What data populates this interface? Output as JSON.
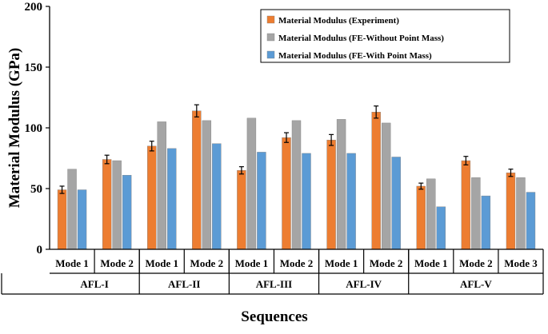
{
  "chart_data": {
    "type": "bar",
    "xlabel": "Sequences",
    "ylabel": "Material Modulus (GPa)",
    "ylim": [
      0,
      200
    ],
    "yticks": [
      0,
      50,
      100,
      150,
      200
    ],
    "grid": false,
    "legend_position": "top-right",
    "groups": [
      {
        "label": "AFL-I",
        "modes": [
          "Mode 1",
          "Mode 2"
        ]
      },
      {
        "label": "AFL-II",
        "modes": [
          "Mode 1",
          "Mode 2"
        ]
      },
      {
        "label": "AFL-III",
        "modes": [
          "Mode 1",
          "Mode 2"
        ]
      },
      {
        "label": "AFL-IV",
        "modes": [
          "Mode 1",
          "Mode 2"
        ]
      },
      {
        "label": "AFL-V",
        "modes": [
          "Mode 1",
          "Mode 2",
          "Mode 3"
        ]
      }
    ],
    "series": [
      {
        "name": "Material Modulus (Experiment)",
        "color": "#ED7D31",
        "values": [
          49,
          74,
          85,
          114,
          65,
          92,
          90,
          113,
          52,
          73,
          63
        ],
        "errors": [
          3,
          3.5,
          4,
          5,
          3,
          4,
          4.5,
          5,
          2.5,
          3.5,
          3
        ]
      },
      {
        "name": "Material Modulus (FE-Without Point Mass)",
        "color": "#A5A5A5",
        "values": [
          66,
          73,
          105,
          106,
          108,
          106,
          107,
          104,
          58,
          59,
          59
        ]
      },
      {
        "name": "Material Modulus (FE-With Point Mass)",
        "color": "#5B9BD5",
        "values": [
          49,
          61,
          83,
          87,
          80,
          79,
          79,
          76,
          35,
          44,
          47
        ]
      }
    ]
  }
}
